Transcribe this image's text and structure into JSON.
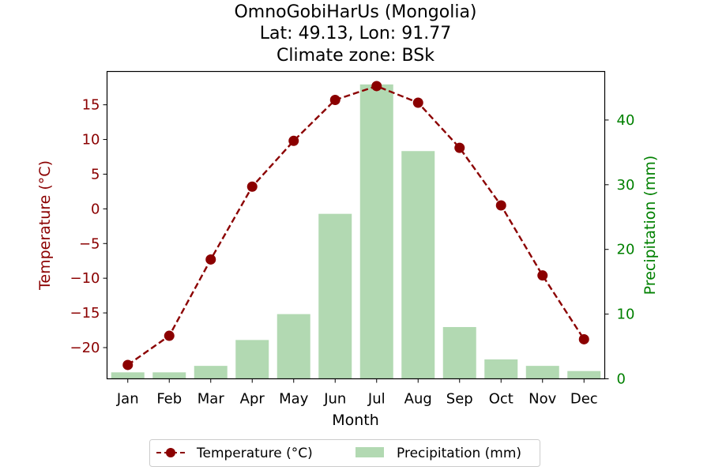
{
  "chart_data": {
    "type": "bar+line",
    "title_lines": [
      "OmnoGobiHarUs (Mongolia)",
      "Lat: 49.13, Lon: 91.77",
      "Climate zone: BSk"
    ],
    "xlabel": "Month",
    "categories": [
      "Jan",
      "Feb",
      "Mar",
      "Apr",
      "May",
      "Jun",
      "Jul",
      "Aug",
      "Sep",
      "Oct",
      "Nov",
      "Dec"
    ],
    "temperature": {
      "name": "Temperature (°C)",
      "axis_label": "Temperature (°C)",
      "values": [
        -22.5,
        -18.3,
        -7.3,
        3.2,
        9.8,
        15.7,
        17.7,
        15.3,
        8.8,
        0.5,
        -9.6,
        -18.8
      ],
      "ylim": [
        -24.5,
        19.8
      ],
      "ticks": [
        -20,
        -15,
        -10,
        -5,
        0,
        5,
        10,
        15
      ],
      "tick_labels": [
        "−20",
        "−15",
        "−10",
        "−5",
        "0",
        "5",
        "10",
        "15"
      ],
      "color": "#8b0000",
      "style": "dashed line with circle markers"
    },
    "precipitation": {
      "name": "Precipitation (mm)",
      "axis_label": "Precipitation (mm)",
      "values": [
        1.0,
        1.0,
        2.0,
        6.0,
        10.0,
        25.5,
        45.5,
        35.2,
        8.0,
        3.0,
        2.0,
        1.2
      ],
      "ylim": [
        0,
        47.5
      ],
      "ticks": [
        0,
        10,
        20,
        30,
        40
      ],
      "tick_labels": [
        "0",
        "10",
        "20",
        "30",
        "40"
      ],
      "color": "#b2d9b2",
      "axis_color": "#008000"
    },
    "grid": false,
    "legend_placement": "bottom-center"
  }
}
